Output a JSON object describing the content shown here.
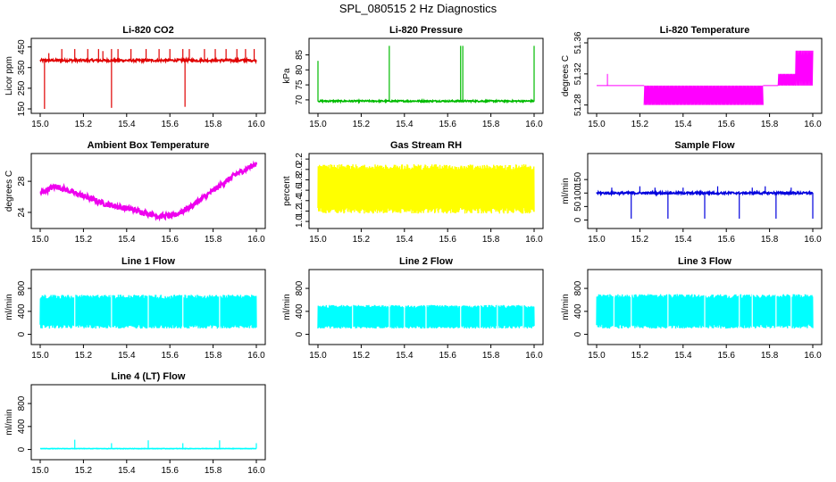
{
  "page": {
    "title": "SPL_080515  2 Hz Diagnostics"
  },
  "chart_data": [
    {
      "id": "co2",
      "type": "line",
      "title": "Li-820 CO2",
      "xlabel": "",
      "ylabel": "Licor ppm",
      "color": "#e00000",
      "xlim": [
        15.0,
        16.0
      ],
      "ylim": [
        150,
        470
      ],
      "xticks": [
        "15.0",
        "15.2",
        "15.4",
        "15.6",
        "15.8",
        "16.0"
      ],
      "yticks": [
        "150",
        "250",
        "350",
        "450"
      ],
      "baseline": 385,
      "noise": 6,
      "spikes": [
        [
          15.02,
          145
        ],
        [
          15.04,
          420
        ],
        [
          15.1,
          440
        ],
        [
          15.16,
          440
        ],
        [
          15.22,
          440
        ],
        [
          15.27,
          440
        ],
        [
          15.29,
          430
        ],
        [
          15.33,
          440
        ],
        [
          15.33,
          155
        ],
        [
          15.36,
          440
        ],
        [
          15.42,
          440
        ],
        [
          15.49,
          440
        ],
        [
          15.55,
          440
        ],
        [
          15.6,
          440
        ],
        [
          15.66,
          440
        ],
        [
          15.67,
          160
        ],
        [
          15.69,
          440
        ],
        [
          15.76,
          440
        ],
        [
          15.81,
          440
        ],
        [
          15.86,
          440
        ],
        [
          15.91,
          440
        ],
        [
          15.95,
          440
        ],
        [
          15.99,
          440
        ]
      ]
    },
    {
      "id": "pressure",
      "type": "line",
      "title": "Li-820 Pressure",
      "xlabel": "",
      "ylabel": "kPa",
      "color": "#00bb00",
      "xlim": [
        15.0,
        16.0
      ],
      "ylim": [
        67,
        89
      ],
      "xticks": [
        "15.0",
        "15.2",
        "15.4",
        "15.6",
        "15.8",
        "16.0"
      ],
      "yticks": [
        "70",
        "75",
        "80",
        "85"
      ],
      "baseline": 69.6,
      "noise": 0.25,
      "spikes": [
        [
          15.0,
          83
        ],
        [
          15.33,
          88
        ],
        [
          15.66,
          88
        ],
        [
          15.67,
          88
        ],
        [
          16.0,
          88
        ]
      ]
    },
    {
      "id": "licor-temp",
      "type": "line",
      "title": "Li-820 Temperature",
      "xlabel": "",
      "ylabel": "degrees C",
      "color": "#ff00ff",
      "xlim": [
        15.0,
        16.0
      ],
      "ylim": [
        51.275,
        51.36
      ],
      "xticks": [
        "15.0",
        "15.2",
        "15.4",
        "15.6",
        "15.8",
        "16.0"
      ],
      "yticks": [
        "51.28",
        "51.32",
        "51.36"
      ],
      "segments": [
        [
          15.0,
          15.22,
          51.305,
          51.305
        ],
        [
          15.22,
          15.77,
          51.28,
          51.305
        ],
        [
          15.77,
          15.84,
          51.305,
          51.305
        ],
        [
          15.84,
          15.92,
          51.305,
          51.32
        ],
        [
          15.92,
          16.0,
          51.305,
          51.35
        ]
      ],
      "spikes": [
        [
          15.05,
          51.32
        ]
      ]
    },
    {
      "id": "box-temp",
      "type": "line",
      "title": "Ambient Box Temperature",
      "xlabel": "",
      "ylabel": "degrees C",
      "color": "#ee00ee",
      "xlim": [
        15.0,
        16.0
      ],
      "ylim": [
        22.5,
        31
      ],
      "xticks": [
        "15.0",
        "15.2",
        "15.4",
        "15.6",
        "15.8",
        "16.0"
      ],
      "yticks": [
        "24",
        "28"
      ],
      "curve": [
        [
          15.0,
          26.5
        ],
        [
          15.07,
          27.4
        ],
        [
          15.15,
          26.6
        ],
        [
          15.3,
          25.1
        ],
        [
          15.45,
          24.2
        ],
        [
          15.55,
          23.5
        ],
        [
          15.62,
          23.6
        ],
        [
          15.7,
          24.8
        ],
        [
          15.8,
          26.8
        ],
        [
          15.9,
          28.8
        ],
        [
          16.0,
          30.3
        ]
      ],
      "noise": 0.35
    },
    {
      "id": "rh",
      "type": "line",
      "title": "Gas Stream RH",
      "xlabel": "",
      "ylabel": "percent",
      "color": "#ffff00",
      "xlim": [
        15.0,
        16.0
      ],
      "ylim": [
        0.95,
        2.22
      ],
      "xticks": [
        "15.0",
        "15.2",
        "15.4",
        "15.6",
        "15.8",
        "16.0"
      ],
      "yticks": [
        "1.0",
        "1.2",
        "1.4",
        "1.6",
        "1.8",
        "2.0",
        "2.2"
      ],
      "band_low": 1.15,
      "band_high": 2.1
    },
    {
      "id": "sample-flow",
      "type": "line",
      "title": "Sample Flow",
      "xlabel": "",
      "ylabel": "ml/min",
      "color": "#0000dd",
      "xlim": [
        15.0,
        16.0
      ],
      "ylim": [
        -15,
        230
      ],
      "xticks": [
        "15.0",
        "15.2",
        "15.4",
        "15.6",
        "15.8",
        "16.0"
      ],
      "yticks": [
        "0",
        "50",
        "100",
        "150"
      ],
      "baseline": 100,
      "noise": 4,
      "spikes": [
        [
          15.16,
          5
        ],
        [
          15.33,
          5
        ],
        [
          15.5,
          5
        ],
        [
          15.66,
          5
        ],
        [
          15.83,
          5
        ],
        [
          16.0,
          5
        ],
        [
          15.07,
          120
        ],
        [
          15.2,
          125
        ],
        [
          15.27,
          120
        ],
        [
          15.4,
          120
        ],
        [
          15.56,
          125
        ],
        [
          15.72,
          120
        ],
        [
          15.78,
          125
        ],
        [
          15.9,
          120
        ]
      ]
    },
    {
      "id": "line1",
      "type": "line",
      "title": "Line 1 Flow",
      "xlabel": "",
      "ylabel": "ml/min",
      "color": "#00ffff",
      "xlim": [
        15.0,
        16.0
      ],
      "ylim": [
        -100,
        1050
      ],
      "xticks": [
        "15.0",
        "15.2",
        "15.4",
        "15.6",
        "15.8",
        "16.0"
      ],
      "yticks": [
        "0",
        "400",
        "800"
      ],
      "band_low": 100,
      "band_high": 690,
      "gaps": [
        15.16,
        15.33,
        15.5,
        15.66,
        15.83
      ]
    },
    {
      "id": "line2",
      "type": "line",
      "title": "Line 2 Flow",
      "xlabel": "",
      "ylabel": "ml/min",
      "color": "#00ffff",
      "xlim": [
        15.0,
        16.0
      ],
      "ylim": [
        -100,
        1050
      ],
      "xticks": [
        "15.0",
        "15.2",
        "15.4",
        "15.6",
        "15.8",
        "16.0"
      ],
      "yticks": [
        "0",
        "400",
        "800"
      ],
      "band_low": 100,
      "band_high": 510,
      "gaps": [
        15.16,
        15.33,
        15.4,
        15.5,
        15.66,
        15.75,
        15.83,
        15.95
      ]
    },
    {
      "id": "line3",
      "type": "line",
      "title": "Line 3 Flow",
      "xlabel": "",
      "ylabel": "ml/min",
      "color": "#00ffff",
      "xlim": [
        15.0,
        16.0
      ],
      "ylim": [
        -100,
        1050
      ],
      "xticks": [
        "15.0",
        "15.2",
        "15.4",
        "15.6",
        "15.8",
        "16.0"
      ],
      "yticks": [
        "0",
        "400",
        "800"
      ],
      "band_low": 100,
      "band_high": 700,
      "gaps": [
        15.08,
        15.16,
        15.33,
        15.5,
        15.66,
        15.72,
        15.83,
        15.9
      ]
    },
    {
      "id": "line4",
      "type": "line",
      "title": "Line 4 (LT) Flow",
      "xlabel": "",
      "ylabel": "ml/min",
      "color": "#00ffff",
      "xlim": [
        15.0,
        16.0
      ],
      "ylim": [
        -100,
        1050
      ],
      "xticks": [
        "15.0",
        "15.2",
        "15.4",
        "15.6",
        "15.8",
        "16.0"
      ],
      "yticks": [
        "0",
        "400",
        "800"
      ],
      "baseline": 15,
      "noise": 3,
      "spikes": [
        [
          15.16,
          170
        ],
        [
          15.33,
          110
        ],
        [
          15.5,
          160
        ],
        [
          15.66,
          110
        ],
        [
          15.83,
          160
        ],
        [
          16.0,
          110
        ]
      ]
    }
  ]
}
